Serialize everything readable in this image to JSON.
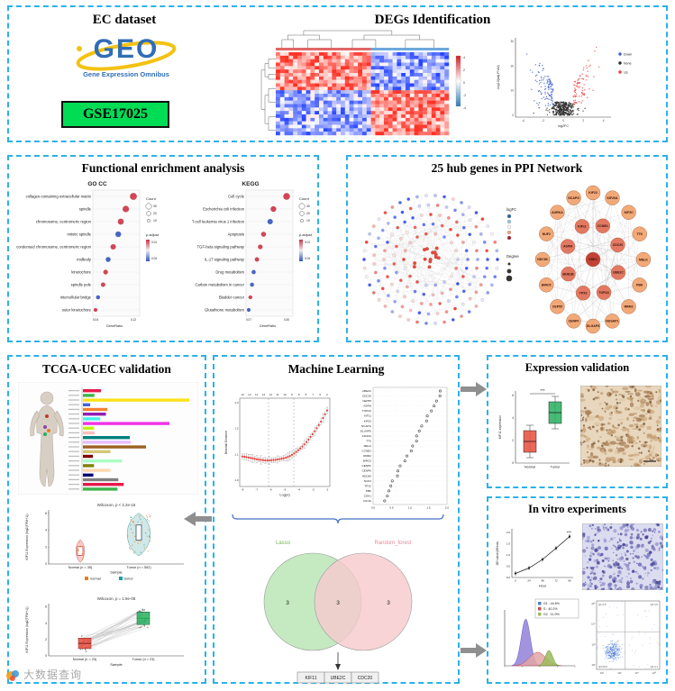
{
  "watermark": {
    "label": "大数据查询"
  },
  "top": {
    "ec": {
      "title": "EC dataset",
      "geo_word": "GEO",
      "geo_subtitle": "Gene Expression Omnibus",
      "accession": "GSE17025"
    },
    "degs": {
      "title": "DEGs Identification",
      "heatmap": {
        "legend_ticks": [
          "4",
          "2",
          "0",
          "-2",
          "-4"
        ]
      },
      "volcano": {
        "xlabel": "log2FC",
        "ylabel": "-log10(adj.P.Val)",
        "x_ticks": [
          "-4",
          "-2",
          "0",
          "2",
          "4"
        ],
        "y_ticks": [
          "0",
          "10",
          "20",
          "30"
        ],
        "legend": [
          {
            "label": "Down",
            "color": "#3a5fcd"
          },
          {
            "label": "None",
            "color": "#2a2a2a"
          },
          {
            "label": "Up",
            "color": "#e8413c"
          }
        ]
      }
    }
  },
  "enrichment": {
    "title": "Functional enrichment analysis",
    "legend": {
      "size_title": "Count",
      "color_title": "p.adjust",
      "size_ticks": [
        "30",
        "20",
        "10"
      ],
      "color_ticks": [
        "0.01",
        "0.04"
      ]
    },
    "go_cc": {
      "title": "GO CC",
      "xlabel": "GeneRatio",
      "categories": [
        "collagen-containing extracellular matrix",
        "spindle",
        "chromosome, centromeric region",
        "mitotic spindle",
        "condensed chromosome, centromeric region",
        "midbody",
        "kinetochore",
        "spindle pole",
        "intercellular bridge",
        "outer kinetochore"
      ],
      "values": [
        0.115,
        0.1,
        0.09,
        0.085,
        0.075,
        0.065,
        0.06,
        0.055,
        0.045,
        0.04
      ],
      "sizes": [
        32,
        28,
        24,
        22,
        20,
        16,
        14,
        12,
        9,
        7
      ],
      "colors": [
        "#cc3344",
        "#cc3344",
        "#cc3344",
        "#3355bb",
        "#cc3344",
        "#3355bb",
        "#cc3344",
        "#cc3344",
        "#3355bb",
        "#cc3344"
      ]
    },
    "kegg": {
      "title": "KEGG",
      "xlabel": "GeneRatio",
      "categories": [
        "Cell cycle",
        "Escherichia coli infection",
        "T-cell leukemia virus 1 infection",
        "Apoptosis",
        "TGF-beta signaling pathway",
        "IL-17 signaling pathway",
        "Drug metabolism",
        "Carbon metabolism in cancer",
        "Bladder cancer",
        "Glutathione metabolism"
      ],
      "values": [
        0.3,
        0.22,
        0.2,
        0.16,
        0.14,
        0.12,
        0.1,
        0.09,
        0.08,
        0.07
      ],
      "sizes": [
        30,
        22,
        20,
        16,
        14,
        12,
        10,
        9,
        8,
        7
      ],
      "colors": [
        "#cc3344",
        "#cc3344",
        "#3355bb",
        "#cc3344",
        "#cc3344",
        "#cc3344",
        "#3355bb",
        "#3355bb",
        "#cc3344",
        "#3355bb"
      ]
    }
  },
  "ppi": {
    "title": "25 hub genes in PPI Network",
    "circ_legend": {
      "color_title": "logFC",
      "size_title": "Degree"
    },
    "hub_genes": [
      "CDK1",
      "CCNB1",
      "CDC20",
      "UBE2C",
      "TOP2A",
      "TPX2",
      "BUB1B",
      "ASPM",
      "KIF11",
      "KIF23",
      "KIF20A",
      "KIF2C",
      "TTK",
      "MELK",
      "PBK",
      "RRM2",
      "NUSAP1",
      "DLGAP5",
      "CENPF",
      "CEP55",
      "BIRC5",
      "NDC80",
      "NUF2",
      "AURKA",
      "NCAPG"
    ]
  },
  "tcga": {
    "title": "TCGA-UCEC validation",
    "violin": {
      "stat": "Wilcoxon, p < 2.2e-16",
      "ylabel": "KIF11 Expression (log2(TPM+1))",
      "xlabel": "Sample",
      "groups": [
        "Normal (n = 35)",
        "Tumor (n = 552)"
      ],
      "y_ticks": [
        "0",
        "2",
        "4",
        "6"
      ],
      "legend": [
        "normal",
        "tumor"
      ]
    },
    "paired": {
      "stat": "Wilcoxon, p = 1.9e-08",
      "ylabel": "KIF11 Expression (log2(TPM+1))",
      "xlabel": "Sample",
      "groups": [
        "Normal (n = 23)",
        "Tumor (n = 23)"
      ],
      "y_ticks": [
        "0",
        "2",
        "4",
        "6"
      ]
    }
  },
  "ml": {
    "title": "Machine Learning",
    "cv": {
      "top_numbers": "13 13 13 12 12 11 10 9 8 8 7 5 2",
      "xlabel": "Log(λ)",
      "ylabel": "Binomial Deviance",
      "x_ticks": [
        "-8",
        "-7",
        "-6",
        "-5",
        "-4",
        "-3",
        "-2"
      ],
      "y_ticks": [
        "1.0",
        "1.1",
        "1.2",
        "1.3"
      ]
    },
    "importance": {
      "x_ticks": [
        "0.0",
        "0.5",
        "1.0",
        "1.5",
        "2.0"
      ],
      "genes": [
        "UBE2C",
        "CDC20",
        "CEP55",
        "ASPM",
        "TOP2A",
        "KIF11",
        "KIF23",
        "NCAPG",
        "DLGAP5",
        "KIF20A",
        "TTK",
        "MELK",
        "CCNB1",
        "RRM2",
        "BIRC5",
        "CENPF",
        "CENPA",
        "NDC80",
        "NUF2",
        "TPX2",
        "PBK",
        "CDK1",
        "KIF4A"
      ]
    },
    "venn": {
      "left_label": "Lasso",
      "right_label": "Random_forest",
      "left_count": "3",
      "mid_count": "3",
      "right_count": "3"
    },
    "result_genes": [
      "KIF11",
      "UBE2C",
      "CDC20"
    ]
  },
  "expression": {
    "title": "Expression validation",
    "box": {
      "ylabel": "KIF11 expression",
      "groups": [
        "Normal",
        "Tumor"
      ],
      "sig": "***",
      "y_ticks": [
        "0",
        "2",
        "4",
        "6"
      ]
    }
  },
  "invitro": {
    "title": "In vitro experiments",
    "growth": {
      "ylabel": "OD value(450nm)",
      "xlabel": "Hour",
      "x_ticks": [
        "0",
        "24",
        "48",
        "72",
        "96"
      ],
      "y_ticks": [
        "0.0",
        "0.5",
        "1.0",
        "1.5",
        "2.0"
      ],
      "sig": "***"
    },
    "cycle_legend": [
      {
        "label": "G1 : 44.6%",
        "color": "#4f81bd"
      },
      {
        "label": "S : 40.2%",
        "color": "#c0504d"
      },
      {
        "label": "G2 : 11.9%",
        "color": "#9bbb59"
      }
    ],
    "flow": {
      "quadrants": [
        "Q1 0.8",
        "Q2 2.6",
        "Q3 90.5",
        "Q4 6.1"
      ],
      "axis_ticks": [
        "10²",
        "10³",
        "10⁴",
        "10⁵"
      ]
    }
  }
}
